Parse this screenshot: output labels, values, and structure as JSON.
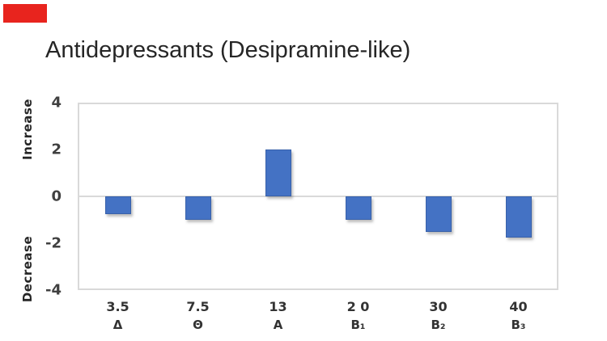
{
  "slide": {
    "title": "Antidepressants (Desipramine-like)"
  },
  "colors": {
    "red_rectangle": "#e8241e",
    "bar_fill": "#4472c4",
    "bar_border": "#3b63ad",
    "plot_border": "#d9d9d9",
    "title_text": "#262626",
    "tick_text": "#404040"
  },
  "chart_data": {
    "type": "bar",
    "title": "Antidepressants (Desipramine-like)",
    "categories": [
      "3.5 Δ",
      "7.5 Θ",
      "13 A",
      "2 0 B₁",
      "30 B₂",
      "40 B₃"
    ],
    "x_labels_dose": [
      "3.5",
      "7.5",
      "13",
      "2 0",
      "30",
      "40"
    ],
    "x_labels_symbol": [
      "Δ",
      "Θ",
      "A",
      "B₁",
      "B₂",
      "B₃"
    ],
    "values": [
      -0.75,
      -1,
      2,
      -1,
      -1.5,
      -1.75
    ],
    "yticks": [
      4,
      2,
      0,
      -2,
      -4
    ],
    "ylim": [
      -4,
      4
    ],
    "ylabel_top": "Increase",
    "ylabel_bottom": "Decrease",
    "bar_color": "#4472c4",
    "grid": "zero-line-only",
    "legend": "none"
  }
}
